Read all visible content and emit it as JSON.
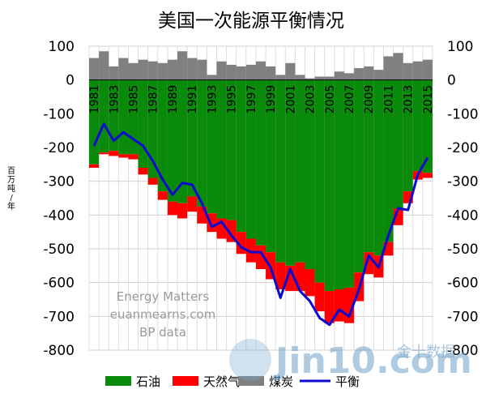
{
  "chart_data": {
    "type": "bar",
    "title": "美国一次能源平衡情况",
    "ylabel": "百万吨/年",
    "ylim": [
      -800,
      100
    ],
    "yticks": [
      100,
      0,
      -100,
      -200,
      -300,
      -400,
      -500,
      -600,
      -700,
      -800
    ],
    "grid": true,
    "legend_position": "bottom",
    "x": [
      1981,
      1982,
      1983,
      1984,
      1985,
      1986,
      1987,
      1988,
      1989,
      1990,
      1991,
      1992,
      1993,
      1994,
      1995,
      1996,
      1997,
      1998,
      1999,
      2000,
      2001,
      2002,
      2003,
      2004,
      2005,
      2006,
      2007,
      2008,
      2009,
      2010,
      2011,
      2012,
      2013,
      2014,
      2015
    ],
    "x_tick_labels": [
      "1981",
      "1983",
      "1985",
      "1987",
      "1989",
      "1991",
      "1993",
      "1995",
      "1997",
      "1999",
      "2001",
      "2003",
      "2005",
      "2007",
      "2009",
      "2011",
      "2013",
      "2015"
    ],
    "series": [
      {
        "name": "石油",
        "color": "#0a8a0a",
        "kind": "bar",
        "values": [
          -250,
          -215,
          -210,
          -220,
          -220,
          -260,
          -290,
          -330,
          -360,
          -365,
          -345,
          -375,
          -395,
          -410,
          -415,
          -450,
          -470,
          -490,
          -510,
          -540,
          -550,
          -540,
          -560,
          -600,
          -625,
          -620,
          -615,
          -570,
          -510,
          -520,
          -480,
          -380,
          -330,
          -270,
          -275
        ]
      },
      {
        "name": "天然气",
        "color": "#ff0000",
        "kind": "bar",
        "values": [
          -10,
          -5,
          -15,
          -10,
          -15,
          -20,
          -20,
          -25,
          -40,
          -45,
          -45,
          -50,
          -55,
          -60,
          -65,
          -65,
          -70,
          -70,
          -80,
          -80,
          -75,
          -85,
          -80,
          -85,
          -95,
          -95,
          -105,
          -85,
          -65,
          -65,
          -40,
          -50,
          -35,
          -25,
          -15
        ]
      },
      {
        "name": "煤炭",
        "color": "#808080",
        "kind": "bar",
        "values": [
          65,
          85,
          40,
          65,
          50,
          60,
          55,
          50,
          60,
          85,
          65,
          60,
          15,
          55,
          45,
          40,
          45,
          55,
          40,
          15,
          50,
          15,
          5,
          10,
          10,
          25,
          20,
          35,
          40,
          30,
          70,
          80,
          50,
          55,
          60
        ]
      },
      {
        "name": "平衡",
        "color": "#0a0ad0",
        "kind": "line",
        "values": [
          -195,
          -130,
          -180,
          -155,
          -175,
          -195,
          -240,
          -295,
          -340,
          -305,
          -310,
          -365,
          -435,
          -420,
          -460,
          -495,
          -510,
          -510,
          -555,
          -645,
          -560,
          -625,
          -655,
          -705,
          -725,
          -680,
          -700,
          -620,
          -520,
          -555,
          -460,
          -380,
          -385,
          -280,
          -230
        ]
      }
    ]
  },
  "watermark": {
    "lines": [
      "Energy Matters",
      "euanmearns.com",
      "BP data"
    ],
    "brand": "Jin10.com",
    "brand_cn": "金十数据"
  }
}
